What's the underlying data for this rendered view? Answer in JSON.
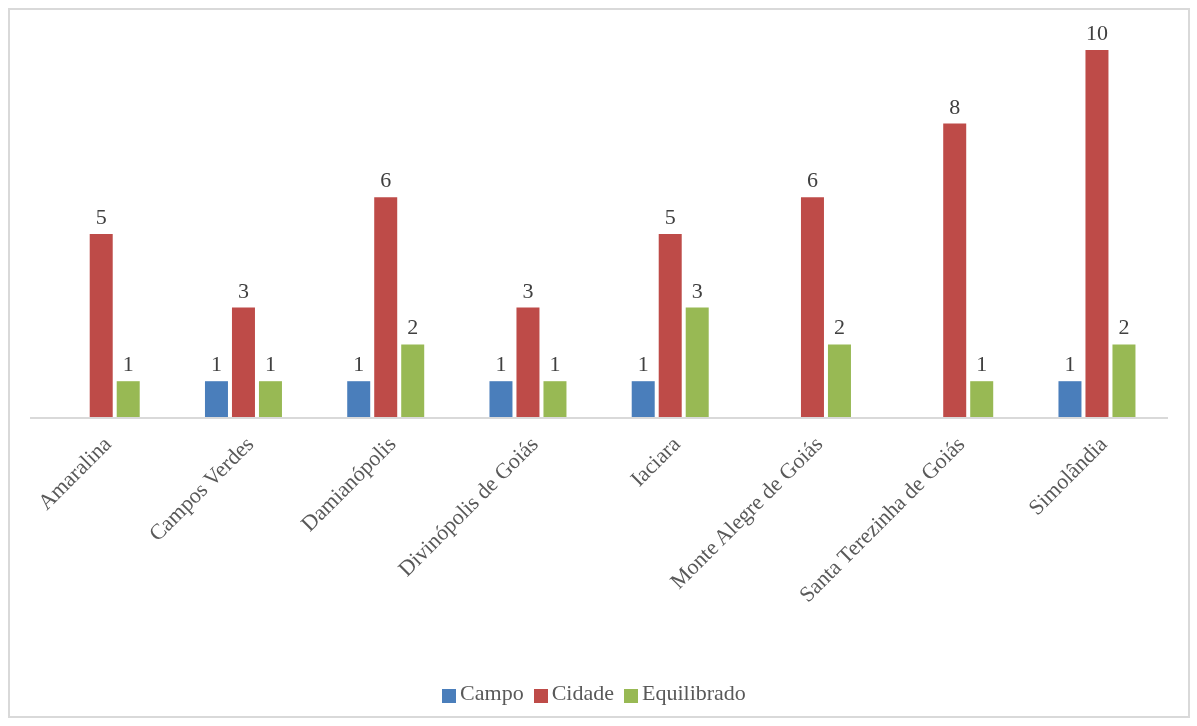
{
  "chart_data": {
    "type": "bar",
    "categories": [
      "Amaralina",
      "Campos Verdes",
      "Damianópolis",
      "Divinópolis de Goiás",
      "Iaciara",
      "Monte Alegre de Goiás",
      "Santa Terezinha de Goiás",
      "Simolândia"
    ],
    "series": [
      {
        "name": "Campo",
        "color": "#4a7ebb",
        "values": [
          null,
          1,
          1,
          1,
          1,
          null,
          null,
          1
        ]
      },
      {
        "name": "Cidade",
        "color": "#be4b48",
        "values": [
          5,
          3,
          6,
          3,
          5,
          6,
          8,
          10
        ]
      },
      {
        "name": "Equilibrado",
        "color": "#98b954",
        "values": [
          1,
          1,
          2,
          1,
          3,
          2,
          1,
          2
        ]
      }
    ],
    "data_labels": true,
    "legend": "bottom"
  }
}
